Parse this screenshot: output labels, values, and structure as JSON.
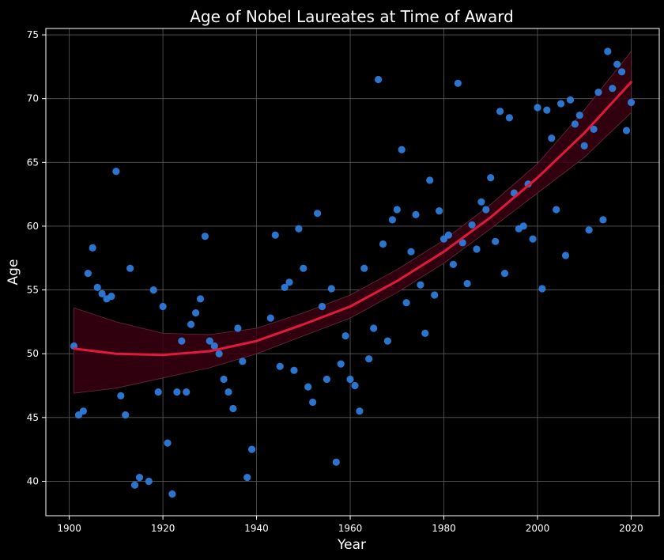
{
  "chart_data": {
    "type": "scatter",
    "title": "Age of Nobel Laureates at Time of Award",
    "xlabel": "Year",
    "ylabel": "Age",
    "xlim": [
      1895,
      2026
    ],
    "ylim": [
      37.3,
      75.5
    ],
    "xticks": [
      1900,
      1920,
      1940,
      1960,
      1980,
      2000,
      2020
    ],
    "yticks": [
      40,
      45,
      50,
      55,
      60,
      65,
      70,
      75
    ],
    "grid": true,
    "colors": {
      "background": "#000000",
      "points": "#2f7fe0",
      "fit_line": "#e0193e",
      "confidence_band": "#3a0010",
      "text": "#ffffff",
      "grid": "#5a5a5a"
    },
    "points": [
      {
        "x": 1901,
        "y": 50.6
      },
      {
        "x": 1902,
        "y": 45.2
      },
      {
        "x": 1903,
        "y": 45.5
      },
      {
        "x": 1904,
        "y": 56.3
      },
      {
        "x": 1905,
        "y": 58.3
      },
      {
        "x": 1906,
        "y": 55.2
      },
      {
        "x": 1907,
        "y": 54.7
      },
      {
        "x": 1908,
        "y": 54.3
      },
      {
        "x": 1909,
        "y": 54.5
      },
      {
        "x": 1910,
        "y": 64.3
      },
      {
        "x": 1911,
        "y": 46.7
      },
      {
        "x": 1912,
        "y": 45.2
      },
      {
        "x": 1913,
        "y": 56.7
      },
      {
        "x": 1914,
        "y": 39.7
      },
      {
        "x": 1915,
        "y": 40.3
      },
      {
        "x": 1917,
        "y": 40.0
      },
      {
        "x": 1918,
        "y": 55.0
      },
      {
        "x": 1919,
        "y": 47.0
      },
      {
        "x": 1920,
        "y": 53.7
      },
      {
        "x": 1921,
        "y": 43.0
      },
      {
        "x": 1922,
        "y": 39.0
      },
      {
        "x": 1923,
        "y": 47.0
      },
      {
        "x": 1924,
        "y": 51.0
      },
      {
        "x": 1925,
        "y": 47.0
      },
      {
        "x": 1926,
        "y": 52.3
      },
      {
        "x": 1927,
        "y": 53.2
      },
      {
        "x": 1928,
        "y": 54.3
      },
      {
        "x": 1929,
        "y": 59.2
      },
      {
        "x": 1930,
        "y": 51.0
      },
      {
        "x": 1931,
        "y": 50.6
      },
      {
        "x": 1932,
        "y": 50.0
      },
      {
        "x": 1933,
        "y": 48.0
      },
      {
        "x": 1934,
        "y": 47.0
      },
      {
        "x": 1935,
        "y": 45.7
      },
      {
        "x": 1936,
        "y": 52.0
      },
      {
        "x": 1937,
        "y": 49.4
      },
      {
        "x": 1938,
        "y": 40.3
      },
      {
        "x": 1939,
        "y": 42.5
      },
      {
        "x": 1943,
        "y": 52.8
      },
      {
        "x": 1944,
        "y": 59.3
      },
      {
        "x": 1945,
        "y": 49.0
      },
      {
        "x": 1946,
        "y": 55.2
      },
      {
        "x": 1947,
        "y": 55.6
      },
      {
        "x": 1948,
        "y": 48.7
      },
      {
        "x": 1949,
        "y": 59.8
      },
      {
        "x": 1950,
        "y": 56.7
      },
      {
        "x": 1951,
        "y": 47.4
      },
      {
        "x": 1952,
        "y": 46.2
      },
      {
        "x": 1953,
        "y": 61.0
      },
      {
        "x": 1954,
        "y": 53.7
      },
      {
        "x": 1955,
        "y": 48.0
      },
      {
        "x": 1956,
        "y": 55.1
      },
      {
        "x": 1957,
        "y": 41.5
      },
      {
        "x": 1958,
        "y": 49.2
      },
      {
        "x": 1959,
        "y": 51.4
      },
      {
        "x": 1960,
        "y": 48.0
      },
      {
        "x": 1961,
        "y": 47.5
      },
      {
        "x": 1962,
        "y": 45.5
      },
      {
        "x": 1963,
        "y": 56.7
      },
      {
        "x": 1964,
        "y": 49.6
      },
      {
        "x": 1965,
        "y": 52.0
      },
      {
        "x": 1966,
        "y": 71.5
      },
      {
        "x": 1967,
        "y": 58.6
      },
      {
        "x": 1968,
        "y": 51.0
      },
      {
        "x": 1969,
        "y": 60.5
      },
      {
        "x": 1970,
        "y": 61.3
      },
      {
        "x": 1971,
        "y": 66.0
      },
      {
        "x": 1972,
        "y": 54.0
      },
      {
        "x": 1973,
        "y": 58.0
      },
      {
        "x": 1974,
        "y": 60.9
      },
      {
        "x": 1975,
        "y": 55.4
      },
      {
        "x": 1976,
        "y": 51.6
      },
      {
        "x": 1977,
        "y": 63.6
      },
      {
        "x": 1978,
        "y": 54.6
      },
      {
        "x": 1979,
        "y": 61.2
      },
      {
        "x": 1980,
        "y": 59.0
      },
      {
        "x": 1981,
        "y": 59.3
      },
      {
        "x": 1982,
        "y": 57.0
      },
      {
        "x": 1983,
        "y": 71.2
      },
      {
        "x": 1984,
        "y": 58.7
      },
      {
        "x": 1985,
        "y": 55.5
      },
      {
        "x": 1986,
        "y": 60.1
      },
      {
        "x": 1987,
        "y": 58.2
      },
      {
        "x": 1988,
        "y": 61.9
      },
      {
        "x": 1989,
        "y": 61.3
      },
      {
        "x": 1990,
        "y": 63.8
      },
      {
        "x": 1991,
        "y": 58.8
      },
      {
        "x": 1992,
        "y": 69.0
      },
      {
        "x": 1993,
        "y": 56.3
      },
      {
        "x": 1994,
        "y": 68.5
      },
      {
        "x": 1995,
        "y": 62.6
      },
      {
        "x": 1996,
        "y": 59.8
      },
      {
        "x": 1997,
        "y": 60.0
      },
      {
        "x": 1998,
        "y": 63.3
      },
      {
        "x": 1999,
        "y": 59.0
      },
      {
        "x": 2000,
        "y": 69.3
      },
      {
        "x": 2001,
        "y": 55.1
      },
      {
        "x": 2002,
        "y": 69.1
      },
      {
        "x": 2003,
        "y": 66.9
      },
      {
        "x": 2004,
        "y": 61.3
      },
      {
        "x": 2005,
        "y": 69.6
      },
      {
        "x": 2006,
        "y": 57.7
      },
      {
        "x": 2007,
        "y": 69.9
      },
      {
        "x": 2008,
        "y": 68.0
      },
      {
        "x": 2009,
        "y": 68.7
      },
      {
        "x": 2010,
        "y": 66.3
      },
      {
        "x": 2011,
        "y": 59.7
      },
      {
        "x": 2012,
        "y": 67.6
      },
      {
        "x": 2013,
        "y": 70.5
      },
      {
        "x": 2014,
        "y": 60.5
      },
      {
        "x": 2015,
        "y": 73.7
      },
      {
        "x": 2016,
        "y": 70.8
      },
      {
        "x": 2017,
        "y": 72.7
      },
      {
        "x": 2018,
        "y": 72.1
      },
      {
        "x": 2019,
        "y": 67.5
      },
      {
        "x": 2020,
        "y": 69.7
      }
    ],
    "fit_curve": [
      {
        "x": 1901,
        "y": 50.4
      },
      {
        "x": 1910,
        "y": 50.0
      },
      {
        "x": 1920,
        "y": 49.9
      },
      {
        "x": 1930,
        "y": 50.2
      },
      {
        "x": 1940,
        "y": 51.0
      },
      {
        "x": 1950,
        "y": 52.3
      },
      {
        "x": 1960,
        "y": 53.7
      },
      {
        "x": 1970,
        "y": 55.7
      },
      {
        "x": 1980,
        "y": 58.0
      },
      {
        "x": 1990,
        "y": 60.7
      },
      {
        "x": 2000,
        "y": 63.8
      },
      {
        "x": 2010,
        "y": 67.3
      },
      {
        "x": 2020,
        "y": 71.3
      }
    ],
    "confidence_band": [
      {
        "x": 1901,
        "lo": 46.9,
        "hi": 53.6
      },
      {
        "x": 1910,
        "lo": 47.3,
        "hi": 52.5
      },
      {
        "x": 1920,
        "lo": 48.1,
        "hi": 51.6
      },
      {
        "x": 1930,
        "lo": 48.9,
        "hi": 51.5
      },
      {
        "x": 1940,
        "lo": 50.0,
        "hi": 52.0
      },
      {
        "x": 1950,
        "lo": 51.4,
        "hi": 53.2
      },
      {
        "x": 1960,
        "lo": 52.8,
        "hi": 54.6
      },
      {
        "x": 1970,
        "lo": 54.8,
        "hi": 56.6
      },
      {
        "x": 1980,
        "lo": 57.1,
        "hi": 58.9
      },
      {
        "x": 1990,
        "lo": 59.8,
        "hi": 61.7
      },
      {
        "x": 2000,
        "lo": 62.6,
        "hi": 64.9
      },
      {
        "x": 2010,
        "lo": 65.4,
        "hi": 69.1
      },
      {
        "x": 2020,
        "lo": 68.9,
        "hi": 73.7
      }
    ]
  }
}
